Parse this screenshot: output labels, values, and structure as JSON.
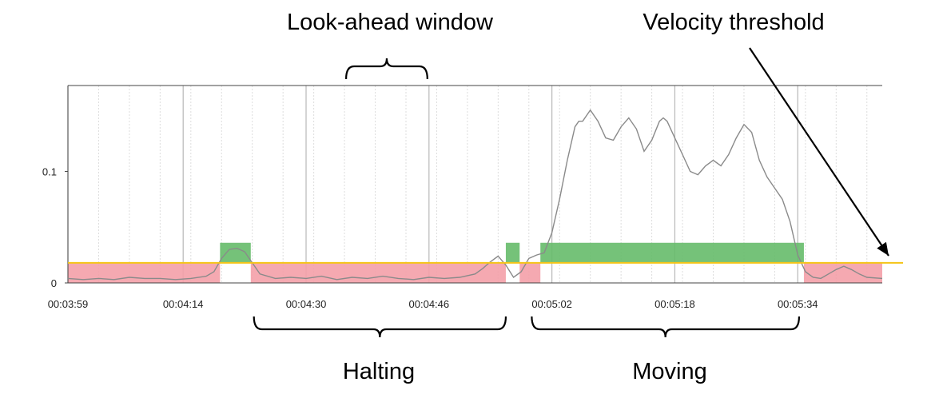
{
  "chart_data": {
    "type": "line",
    "xlabel": "",
    "ylabel": "",
    "x_tick_labels": [
      "00:03:59",
      "00:04:14",
      "00:04:30",
      "00:04:46",
      "00:05:02",
      "00:05:18",
      "00:05:34"
    ],
    "x_tick_values": [
      239,
      254,
      270,
      286,
      302,
      318,
      334
    ],
    "y_tick_labels": [
      "0",
      "0.1"
    ],
    "y_tick_values": [
      0,
      0.1
    ],
    "xlim": [
      239,
      345
    ],
    "ylim": [
      0,
      0.177
    ],
    "grid": true,
    "threshold": 0.018,
    "series": [
      {
        "x": [
          239,
          241,
          243,
          245,
          247,
          249,
          251,
          253,
          255,
          257,
          258,
          259,
          260,
          261,
          262,
          263,
          264,
          266,
          268,
          270,
          272,
          274,
          276,
          278,
          280,
          282,
          284,
          286,
          288,
          290,
          292,
          293,
          294,
          295,
          296,
          297,
          298,
          299,
          300,
          301,
          302,
          303,
          304,
          305,
          305.5,
          306,
          307,
          308,
          309,
          310,
          311,
          312,
          313,
          314,
          315,
          316,
          316.5,
          317,
          318,
          319,
          320,
          321,
          322,
          323,
          324,
          325,
          326,
          327,
          328,
          329,
          330,
          331,
          332,
          333,
          334,
          335,
          336,
          337,
          338,
          339,
          340,
          341,
          342,
          343,
          345
        ],
        "y": [
          0.004,
          0.003,
          0.004,
          0.003,
          0.005,
          0.004,
          0.004,
          0.003,
          0.004,
          0.006,
          0.01,
          0.022,
          0.03,
          0.031,
          0.028,
          0.018,
          0.008,
          0.004,
          0.005,
          0.004,
          0.006,
          0.003,
          0.005,
          0.004,
          0.006,
          0.004,
          0.003,
          0.005,
          0.004,
          0.005,
          0.008,
          0.013,
          0.019,
          0.024,
          0.016,
          0.005,
          0.01,
          0.022,
          0.025,
          0.027,
          0.045,
          0.075,
          0.11,
          0.14,
          0.145,
          0.145,
          0.155,
          0.145,
          0.13,
          0.128,
          0.14,
          0.148,
          0.138,
          0.118,
          0.128,
          0.145,
          0.148,
          0.145,
          0.13,
          0.115,
          0.1,
          0.097,
          0.105,
          0.11,
          0.105,
          0.115,
          0.13,
          0.142,
          0.135,
          0.11,
          0.095,
          0.085,
          0.075,
          0.055,
          0.025,
          0.01,
          0.005,
          0.004,
          0.008,
          0.012,
          0.015,
          0.012,
          0.008,
          0.005,
          0.004
        ]
      }
    ],
    "state_bands": [
      {
        "state": "halting",
        "x0": 239,
        "x1": 258.8
      },
      {
        "state": "moving",
        "x0": 258.8,
        "x1": 262.8
      },
      {
        "state": "halting",
        "x0": 262.8,
        "x1": 296
      },
      {
        "state": "moving",
        "x0": 296,
        "x1": 297.8
      },
      {
        "state": "halting",
        "x0": 297.8,
        "x1": 300.5
      },
      {
        "state": "moving",
        "x0": 300.5,
        "x1": 334.8
      },
      {
        "state": "halting",
        "x0": 334.8,
        "x1": 345
      }
    ],
    "colors": {
      "line": "#8a8a8a",
      "threshold": "#f5c518",
      "halting": "#f4a0a8",
      "moving": "#66bb6a",
      "grid_major": "#b8b8b8",
      "grid_minor": "#dddddd"
    },
    "annotations": {
      "look_ahead": "Look-ahead window",
      "velocity_threshold": "Velocity threshold",
      "halting": "Halting",
      "moving": "Moving"
    },
    "look_ahead_range": [
      275,
      286
    ],
    "halting_range": [
      263,
      296
    ],
    "moving_range": [
      300,
      334.8
    ]
  }
}
